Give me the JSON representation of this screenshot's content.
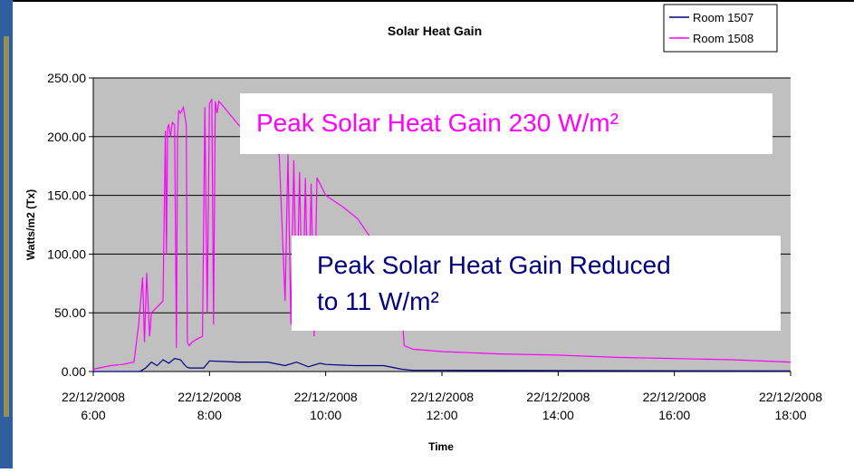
{
  "chart_data": {
    "type": "line",
    "title": "Solar Heat Gain",
    "x_label": "Time",
    "y_label": "Watts/m2 (Tx)",
    "xlim": [
      6,
      18
    ],
    "xticks": [
      {
        "value": 6,
        "label": "22/12/2008 6:00"
      },
      {
        "value": 8,
        "label": "22/12/2008 8:00"
      },
      {
        "value": 10,
        "label": "22/12/2008 10:00"
      },
      {
        "value": 12,
        "label": "22/12/2008 12:00"
      },
      {
        "value": 14,
        "label": "22/12/2008 14:00"
      },
      {
        "value": 16,
        "label": "22/12/2008 16:00"
      },
      {
        "value": 18,
        "label": "22/12/2008 18:00"
      }
    ],
    "ylim": [
      0,
      250
    ],
    "yticks": [
      {
        "value": 0,
        "label": "0.00"
      },
      {
        "value": 50,
        "label": "50.00"
      },
      {
        "value": 100,
        "label": "100.00"
      },
      {
        "value": 150,
        "label": "150.00"
      },
      {
        "value": 200,
        "label": "200.00"
      },
      {
        "value": 250,
        "label": "250.00"
      }
    ],
    "grid": true,
    "legend": "top-right",
    "series": [
      {
        "name": "Room 1507",
        "color": "#000080",
        "x": [
          6,
          6.8,
          6.9,
          7.0,
          7.1,
          7.2,
          7.3,
          7.4,
          7.5,
          7.6,
          7.65,
          7.9,
          8.0,
          8.5,
          9.0,
          9.3,
          9.5,
          9.7,
          9.9,
          10.0,
          10.5,
          11.0,
          11.3,
          11.5,
          12,
          14,
          16,
          18
        ],
        "values": [
          0,
          0,
          3,
          8,
          5,
          10,
          7,
          11,
          10,
          4,
          3,
          3,
          9,
          8,
          8,
          5,
          8,
          4,
          7,
          6,
          5,
          5,
          2,
          1,
          1,
          0.8,
          0.6,
          0.5
        ]
      },
      {
        "name": "Room 1508",
        "color": "#ff00ff",
        "x": [
          6,
          6.1,
          6.3,
          6.5,
          6.7,
          6.78,
          6.85,
          6.88,
          6.92,
          6.97,
          7.0,
          7.1,
          7.2,
          7.24,
          7.26,
          7.28,
          7.3,
          7.33,
          7.36,
          7.4,
          7.43,
          7.45,
          7.47,
          7.5,
          7.55,
          7.6,
          7.62,
          7.65,
          7.7,
          7.8,
          7.88,
          7.92,
          7.96,
          8.0,
          8.04,
          8.07,
          8.1,
          8.13,
          8.16,
          8.2,
          8.3,
          8.5,
          8.75,
          9.0,
          9.2,
          9.3,
          9.35,
          9.4,
          9.45,
          9.5,
          9.55,
          9.6,
          9.65,
          9.7,
          9.75,
          9.8,
          9.85,
          10.0,
          10.3,
          10.55,
          10.8,
          11.0,
          11.25,
          11.3,
          11.35,
          11.5,
          12,
          13,
          14,
          15,
          16,
          17,
          18
        ],
        "values": [
          2,
          3,
          5,
          6,
          8,
          40,
          80,
          25,
          84,
          30,
          50,
          55,
          60,
          205,
          100,
          208,
          210,
          200,
          212,
          210,
          20,
          200,
          222,
          220,
          225,
          210,
          25,
          22,
          25,
          28,
          30,
          225,
          50,
          228,
          232,
          40,
          230,
          220,
          230,
          228,
          222,
          210,
          200,
          190,
          185,
          60,
          185,
          40,
          180,
          50,
          170,
          35,
          165,
          40,
          160,
          30,
          165,
          150,
          140,
          130,
          112,
          100,
          85,
          60,
          22,
          19,
          17,
          15,
          14,
          12,
          11,
          10,
          8
        ]
      }
    ],
    "annotations": [
      {
        "lines": [
          "Peak Solar Heat Gain 230 W/m²"
        ],
        "color": "#ff00ff"
      },
      {
        "lines": [
          "Peak Solar Heat Gain Reduced",
          "to 11 W/m²"
        ],
        "color": "#000080"
      }
    ]
  }
}
